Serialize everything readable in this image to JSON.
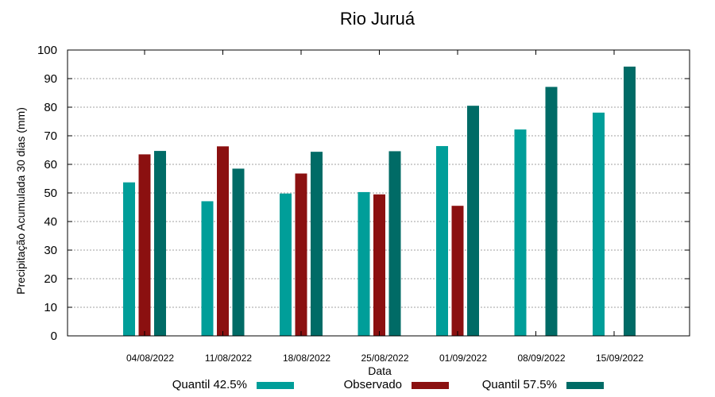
{
  "chart_data": {
    "type": "bar",
    "title": "Rio Juruá",
    "xlabel": "Data",
    "ylabel": "Precipitação Acumulada 30 dias (mm)",
    "ylim": [
      0,
      100
    ],
    "yticks": [
      0,
      10,
      20,
      30,
      40,
      50,
      60,
      70,
      80,
      90,
      100
    ],
    "grid": true,
    "legend_position": "bottom",
    "categories": [
      "04/08/2022",
      "11/08/2022",
      "18/08/2022",
      "25/08/2022",
      "01/09/2022",
      "08/09/2022",
      "15/09/2022"
    ],
    "series": [
      {
        "name": "Quantil 42.5%",
        "color": "#009e99",
        "values": [
          53.7,
          47.1,
          49.8,
          50.3,
          66.4,
          72.2,
          78.1
        ]
      },
      {
        "name": "Observado",
        "color": "#8b1010",
        "values": [
          63.5,
          66.3,
          56.8,
          49.5,
          45.5,
          null,
          null
        ]
      },
      {
        "name": "Quantil 57.5%",
        "color": "#006b66",
        "values": [
          64.7,
          58.5,
          64.4,
          64.6,
          80.5,
          87.1,
          94.2
        ]
      }
    ]
  }
}
